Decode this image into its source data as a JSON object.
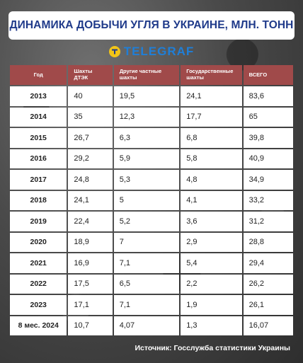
{
  "header": {
    "title": "ДИНАМИКА ДОБЫЧИ УГЛЯ В УКРАИНЕ, МЛН. ТОНН",
    "logo_text": "TELEGRAF",
    "logo_icon": "t-logo-icon",
    "accent": "#1f3a8a",
    "logo_color": "#1f7fd8",
    "header_row_color": "#a04a4a"
  },
  "chart_data": {
    "type": "table",
    "title": "ДИНАМИКА ДОБЫЧИ УГЛЯ В УКРАИНЕ, МЛН. ТОНН",
    "columns": [
      "Год",
      "Шахты ДТЭК",
      "Другие частные шахты",
      "Государственные шахты",
      "ВСЕГО"
    ],
    "rows": [
      [
        "2013",
        "40",
        "19,5",
        "24,1",
        "83,6"
      ],
      [
        "2014",
        "35",
        "12,3",
        "17,7",
        "65"
      ],
      [
        "2015",
        "26,7",
        "6,3",
        "6,8",
        "39,8"
      ],
      [
        "2016",
        "29,2",
        "5,9",
        "5,8",
        "40,9"
      ],
      [
        "2017",
        "24,8",
        "5,3",
        "4,8",
        "34,9"
      ],
      [
        "2018",
        "24,1",
        "5",
        "4,1",
        "33,2"
      ],
      [
        "2019",
        "22,4",
        "5,2",
        "3,6",
        "31,2"
      ],
      [
        "2020",
        "18,9",
        "7",
        "2,9",
        "28,8"
      ],
      [
        "2021",
        "16,9",
        "7,1",
        "5,4",
        "29,4"
      ],
      [
        "2022",
        "17,5",
        "6,5",
        "2,2",
        "26,2"
      ],
      [
        "2023",
        "17,1",
        "7,1",
        "1,9",
        "26,1"
      ],
      [
        "8 мес. 2024",
        "10,7",
        "4,07",
        "1,3",
        "16,07"
      ]
    ]
  },
  "footer": {
    "source": "Источник: Госслужба статистики Украины"
  }
}
